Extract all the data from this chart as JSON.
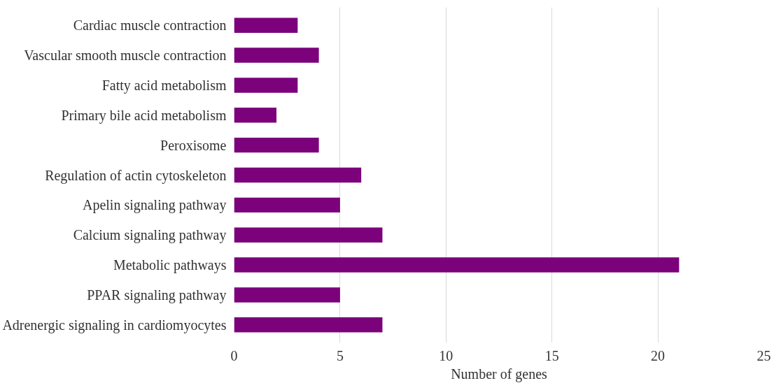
{
  "chart_data": {
    "type": "bar",
    "orientation": "horizontal",
    "xlabel": "Number of genes",
    "categories": [
      "Cardiac muscle contraction",
      "Vascular smooth muscle contraction",
      "Fatty acid metabolism",
      "Primary bile acid metabolism",
      "Peroxisome",
      "Regulation of actin cytoskeleton",
      "Apelin signaling pathway",
      "Calcium signaling pathway",
      "Metabolic pathways",
      "PPAR signaling pathway",
      "Adrenergic signaling in cardiomyocytes"
    ],
    "values": [
      3,
      4,
      3,
      2,
      4,
      6,
      5,
      7,
      21,
      5,
      7
    ],
    "color": "#7b027b",
    "xlim": [
      0,
      25
    ],
    "xticks": [
      0,
      5,
      10,
      15,
      20,
      25
    ],
    "grid": "x"
  }
}
